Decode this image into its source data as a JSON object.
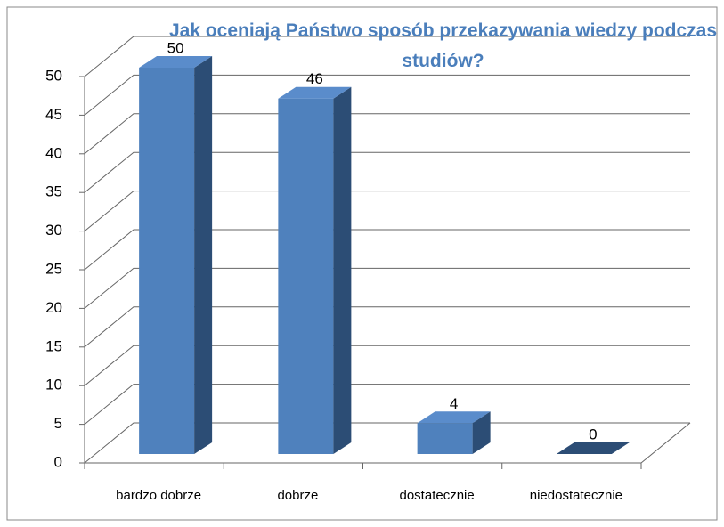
{
  "chart_data": {
    "type": "bar3d",
    "title": "Jak oceniają Państwo sposób przekazywania wiedzy podczas studiów?",
    "categories": [
      "bardzo dobrze",
      "dobrze",
      "dostatecznie",
      "niedostatecznie"
    ],
    "values": [
      50,
      46,
      4,
      0
    ],
    "color": "#4f81bd",
    "ylim": [
      0,
      50
    ],
    "yticks": [
      0,
      5,
      10,
      15,
      20,
      25,
      30,
      35,
      40,
      45,
      50
    ],
    "grid": true
  }
}
